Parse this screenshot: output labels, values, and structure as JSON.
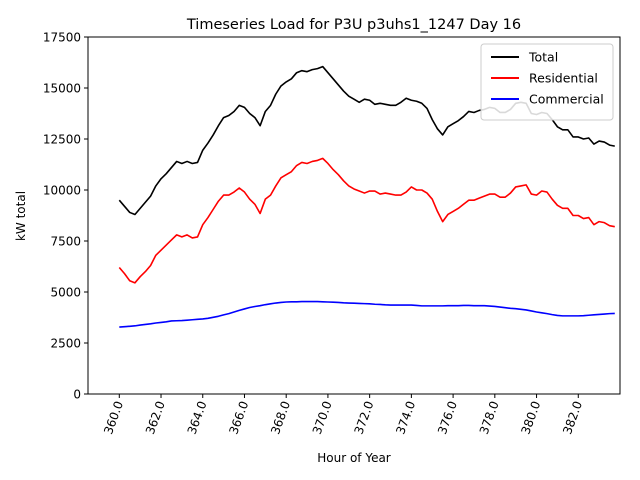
{
  "chart_data": {
    "type": "line",
    "title": "Timeseries Load for P3U p3uhs1_1247  Day 16",
    "xlabel": "Hour of Year",
    "ylabel": "kW total",
    "xlim": [
      358.5,
      384.0
    ],
    "ylim": [
      0,
      17500
    ],
    "xticks": [
      360,
      362,
      364,
      366,
      368,
      370,
      372,
      374,
      376,
      378,
      380,
      382
    ],
    "xtick_labels": [
      "360.0",
      "362.0",
      "364.0",
      "366.0",
      "368.0",
      "370.0",
      "372.0",
      "374.0",
      "376.0",
      "378.0",
      "380.0",
      "382.0"
    ],
    "yticks": [
      0,
      2500,
      5000,
      7500,
      10000,
      12500,
      15000,
      17500
    ],
    "ytick_labels": [
      "0",
      "2500",
      "5000",
      "7500",
      "10000",
      "12500",
      "15000",
      "17500"
    ],
    "legend_position": "top-right",
    "x": [
      360.0,
      360.25,
      360.5,
      360.75,
      361.0,
      361.25,
      361.5,
      361.75,
      362.0,
      362.25,
      362.5,
      362.75,
      363.0,
      363.25,
      363.5,
      363.75,
      364.0,
      364.25,
      364.5,
      364.75,
      365.0,
      365.25,
      365.5,
      365.75,
      366.0,
      366.25,
      366.5,
      366.75,
      367.0,
      367.25,
      367.5,
      367.75,
      368.0,
      368.25,
      368.5,
      368.75,
      369.0,
      369.25,
      369.5,
      369.75,
      370.0,
      370.25,
      370.5,
      370.75,
      371.0,
      371.25,
      371.5,
      371.75,
      372.0,
      372.25,
      372.5,
      372.75,
      373.0,
      373.25,
      373.5,
      373.75,
      374.0,
      374.25,
      374.5,
      374.75,
      375.0,
      375.25,
      375.5,
      375.75,
      376.0,
      376.25,
      376.5,
      376.75,
      377.0,
      377.25,
      377.5,
      377.75,
      378.0,
      378.25,
      378.5,
      378.75,
      379.0,
      379.25,
      379.5,
      379.75,
      380.0,
      380.25,
      380.5,
      380.75,
      381.0,
      381.25,
      381.5,
      381.75,
      382.0,
      382.25,
      382.5,
      382.75,
      383.0,
      383.25,
      383.5,
      383.75
    ],
    "series": [
      {
        "name": "Total",
        "color": "#000000",
        "values": [
          9500,
          9200,
          8900,
          8800,
          9100,
          9400,
          9700,
          10200,
          10550,
          10800,
          11100,
          11400,
          11300,
          11400,
          11300,
          11350,
          11950,
          12300,
          12700,
          13150,
          13550,
          13650,
          13850,
          14150,
          14050,
          13750,
          13550,
          13150,
          13850,
          14150,
          14700,
          15100,
          15300,
          15450,
          15750,
          15850,
          15800,
          15900,
          15950,
          16050,
          15750,
          15450,
          15150,
          14850,
          14600,
          14450,
          14300,
          14450,
          14400,
          14200,
          14250,
          14200,
          14150,
          14150,
          14300,
          14500,
          14400,
          14350,
          14250,
          14000,
          13450,
          13000,
          12700,
          13100,
          13250,
          13400,
          13600,
          13850,
          13800,
          13900,
          13950,
          14050,
          14000,
          13800,
          13800,
          13950,
          14250,
          14300,
          14250,
          13750,
          13700,
          13800,
          13750,
          13450,
          13100,
          12950,
          12950,
          12600,
          12600,
          12500,
          12550,
          12250,
          12400,
          12350,
          12200,
          12150
        ]
      },
      {
        "name": "Residential",
        "color": "#ff0000",
        "values": [
          6200,
          5900,
          5550,
          5450,
          5750,
          6000,
          6300,
          6800,
          7050,
          7300,
          7550,
          7800,
          7700,
          7800,
          7650,
          7700,
          8300,
          8650,
          9050,
          9450,
          9750,
          9750,
          9900,
          10100,
          9900,
          9550,
          9300,
          8850,
          9550,
          9750,
          10200,
          10600,
          10750,
          10900,
          11200,
          11350,
          11300,
          11400,
          11450,
          11550,
          11300,
          11000,
          10750,
          10450,
          10200,
          10050,
          9950,
          9850,
          9950,
          9950,
          9800,
          9850,
          9800,
          9750,
          9750,
          9900,
          10150,
          10000,
          10000,
          9850,
          9550,
          8950,
          8450,
          8800,
          8950,
          9100,
          9300,
          9500,
          9500,
          9600,
          9700,
          9800,
          9800,
          9650,
          9650,
          9850,
          10150,
          10200,
          10250,
          9800,
          9750,
          9950,
          9900,
          9550,
          9250,
          9100,
          9100,
          8750,
          8750,
          8600,
          8650,
          8300,
          8450,
          8400,
          8250,
          8200
        ]
      },
      {
        "name": "Commercial",
        "color": "#0000ff",
        "values": [
          3280,
          3300,
          3320,
          3340,
          3380,
          3410,
          3440,
          3480,
          3510,
          3540,
          3580,
          3590,
          3600,
          3620,
          3640,
          3660,
          3680,
          3710,
          3760,
          3810,
          3880,
          3940,
          4020,
          4100,
          4170,
          4240,
          4290,
          4330,
          4380,
          4420,
          4460,
          4490,
          4510,
          4520,
          4520,
          4530,
          4530,
          4530,
          4530,
          4520,
          4510,
          4500,
          4490,
          4470,
          4460,
          4450,
          4440,
          4430,
          4420,
          4400,
          4390,
          4370,
          4360,
          4360,
          4360,
          4360,
          4360,
          4340,
          4320,
          4320,
          4320,
          4320,
          4320,
          4330,
          4330,
          4330,
          4340,
          4340,
          4330,
          4330,
          4330,
          4310,
          4290,
          4260,
          4230,
          4200,
          4180,
          4150,
          4120,
          4070,
          4020,
          3980,
          3940,
          3890,
          3850,
          3830,
          3830,
          3830,
          3830,
          3840,
          3860,
          3880,
          3900,
          3920,
          3940,
          3950
        ]
      }
    ]
  }
}
